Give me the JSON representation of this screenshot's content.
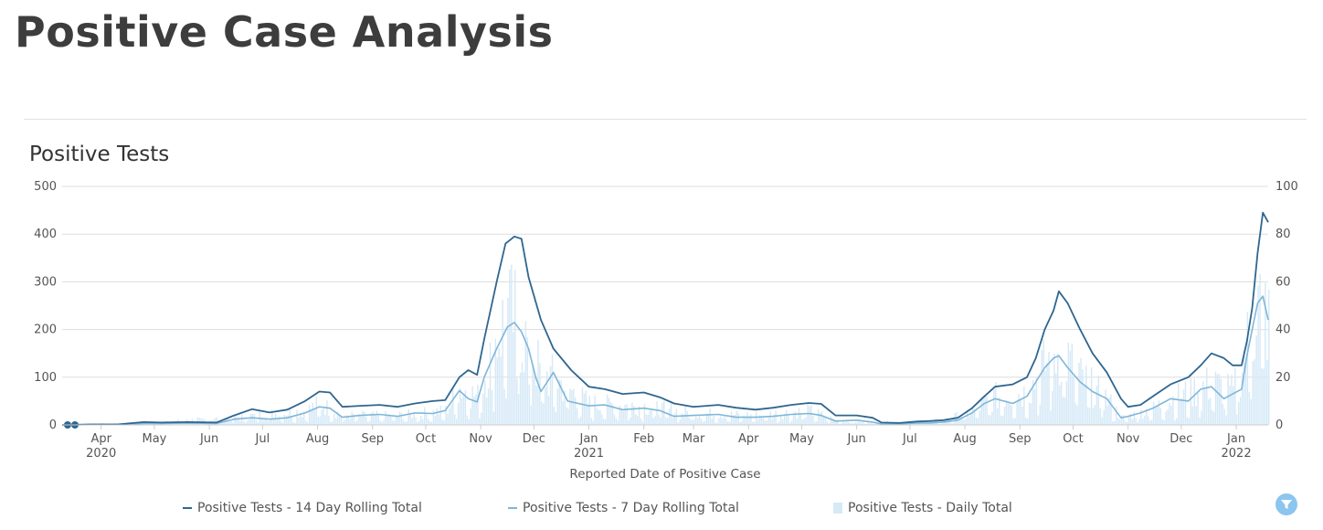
{
  "page": {
    "title": "Positive Case Analysis"
  },
  "chart_title": "Positive Tests",
  "colors": {
    "line14": "#2f6690",
    "line7": "#7fb6d8",
    "bars": "#d6e9f7",
    "grid": "#dddddd",
    "filter": "#8cc5ef"
  },
  "legend": {
    "items": [
      {
        "label": "Positive Tests - 14 Day Rolling Total",
        "color": "#2f6690",
        "shape": "line"
      },
      {
        "label": "Positive Tests - 7 Day Rolling Total",
        "color": "#7fb6d8",
        "shape": "line"
      },
      {
        "label": "Positive Tests - Daily Total",
        "color": "#d6e9f7",
        "shape": "box"
      }
    ]
  },
  "filter_icon": "filter-icon",
  "chart_data": {
    "type": "line",
    "title": "Positive Tests",
    "xlabel": "Reported Date of Positive Case",
    "ylabel_left": "",
    "ylabel_right": "",
    "ylim_left": [
      0,
      500
    ],
    "ylim_right": [
      0,
      100
    ],
    "yticks_left": [
      "0",
      "100",
      "200",
      "300",
      "400",
      "500"
    ],
    "yticks_right": [
      "0",
      "20",
      "40",
      "60",
      "80",
      "100"
    ],
    "grid": true,
    "legend_position": "bottom",
    "xlim": [
      "2020-03-10",
      "2022-01-19"
    ],
    "xticks": [
      {
        "date": "2020-04-01",
        "label": "Apr",
        "sub": "2020"
      },
      {
        "date": "2020-05-01",
        "label": "May",
        "sub": ""
      },
      {
        "date": "2020-06-01",
        "label": "Jun",
        "sub": ""
      },
      {
        "date": "2020-07-01",
        "label": "Jul",
        "sub": ""
      },
      {
        "date": "2020-08-01",
        "label": "Aug",
        "sub": ""
      },
      {
        "date": "2020-09-01",
        "label": "Sep",
        "sub": ""
      },
      {
        "date": "2020-10-01",
        "label": "Oct",
        "sub": ""
      },
      {
        "date": "2020-11-01",
        "label": "Nov",
        "sub": ""
      },
      {
        "date": "2020-12-01",
        "label": "Dec",
        "sub": ""
      },
      {
        "date": "2021-01-01",
        "label": "Jan",
        "sub": "2021"
      },
      {
        "date": "2021-02-01",
        "label": "Feb",
        "sub": ""
      },
      {
        "date": "2021-03-01",
        "label": "Mar",
        "sub": ""
      },
      {
        "date": "2021-04-01",
        "label": "Apr",
        "sub": ""
      },
      {
        "date": "2021-05-01",
        "label": "May",
        "sub": ""
      },
      {
        "date": "2021-06-01",
        "label": "Jun",
        "sub": ""
      },
      {
        "date": "2021-07-01",
        "label": "Jul",
        "sub": ""
      },
      {
        "date": "2021-08-01",
        "label": "Aug",
        "sub": ""
      },
      {
        "date": "2021-09-01",
        "label": "Sep",
        "sub": ""
      },
      {
        "date": "2021-10-01",
        "label": "Oct",
        "sub": ""
      },
      {
        "date": "2021-11-01",
        "label": "Nov",
        "sub": ""
      },
      {
        "date": "2021-12-01",
        "label": "Dec",
        "sub": ""
      },
      {
        "date": "2022-01-01",
        "label": "Jan",
        "sub": "2022"
      }
    ],
    "series": [
      {
        "name": "Positive Tests - 14 Day Rolling Total",
        "axis": "left",
        "points": [
          [
            "2020-03-10",
            0
          ],
          [
            "2020-03-12",
            0
          ],
          [
            "2020-03-26",
            1
          ],
          [
            "2020-04-10",
            1
          ],
          [
            "2020-04-25",
            6
          ],
          [
            "2020-05-05",
            5
          ],
          [
            "2020-05-20",
            6
          ],
          [
            "2020-06-05",
            5
          ],
          [
            "2020-06-15",
            20
          ],
          [
            "2020-06-25",
            33
          ],
          [
            "2020-07-05",
            26
          ],
          [
            "2020-07-15",
            32
          ],
          [
            "2020-07-25",
            50
          ],
          [
            "2020-08-02",
            70
          ],
          [
            "2020-08-08",
            68
          ],
          [
            "2020-08-15",
            38
          ],
          [
            "2020-08-25",
            40
          ],
          [
            "2020-09-05",
            42
          ],
          [
            "2020-09-15",
            38
          ],
          [
            "2020-09-25",
            45
          ],
          [
            "2020-10-05",
            50
          ],
          [
            "2020-10-12",
            52
          ],
          [
            "2020-10-20",
            100
          ],
          [
            "2020-10-25",
            115
          ],
          [
            "2020-10-30",
            105
          ],
          [
            "2020-11-03",
            180
          ],
          [
            "2020-11-10",
            300
          ],
          [
            "2020-11-15",
            380
          ],
          [
            "2020-11-20",
            395
          ],
          [
            "2020-11-24",
            390
          ],
          [
            "2020-11-28",
            310
          ],
          [
            "2020-12-05",
            220
          ],
          [
            "2020-12-12",
            160
          ],
          [
            "2020-12-22",
            115
          ],
          [
            "2021-01-01",
            80
          ],
          [
            "2021-01-10",
            75
          ],
          [
            "2021-01-20",
            65
          ],
          [
            "2021-02-01",
            68
          ],
          [
            "2021-02-10",
            58
          ],
          [
            "2021-02-18",
            45
          ],
          [
            "2021-03-01",
            38
          ],
          [
            "2021-03-15",
            42
          ],
          [
            "2021-03-25",
            36
          ],
          [
            "2021-04-05",
            32
          ],
          [
            "2021-04-15",
            36
          ],
          [
            "2021-04-25",
            42
          ],
          [
            "2021-05-05",
            46
          ],
          [
            "2021-05-12",
            44
          ],
          [
            "2021-05-20",
            20
          ],
          [
            "2021-06-01",
            20
          ],
          [
            "2021-06-10",
            15
          ],
          [
            "2021-06-15",
            5
          ],
          [
            "2021-06-25",
            4
          ],
          [
            "2021-07-05",
            7
          ],
          [
            "2021-07-12",
            8
          ],
          [
            "2021-07-20",
            10
          ],
          [
            "2021-07-28",
            15
          ],
          [
            "2021-08-05",
            35
          ],
          [
            "2021-08-12",
            60
          ],
          [
            "2021-08-18",
            80
          ],
          [
            "2021-08-28",
            85
          ],
          [
            "2021-09-05",
            100
          ],
          [
            "2021-09-10",
            140
          ],
          [
            "2021-09-15",
            200
          ],
          [
            "2021-09-20",
            240
          ],
          [
            "2021-09-23",
            280
          ],
          [
            "2021-09-28",
            255
          ],
          [
            "2021-10-05",
            200
          ],
          [
            "2021-10-12",
            150
          ],
          [
            "2021-10-20",
            110
          ],
          [
            "2021-10-28",
            55
          ],
          [
            "2021-11-01",
            38
          ],
          [
            "2021-11-08",
            42
          ],
          [
            "2021-11-15",
            60
          ],
          [
            "2021-11-25",
            85
          ],
          [
            "2021-12-05",
            100
          ],
          [
            "2021-12-12",
            125
          ],
          [
            "2021-12-18",
            150
          ],
          [
            "2021-12-25",
            140
          ],
          [
            "2021-12-30",
            125
          ],
          [
            "2022-01-04",
            125
          ],
          [
            "2022-01-07",
            175
          ],
          [
            "2022-01-10",
            245
          ],
          [
            "2022-01-13",
            360
          ],
          [
            "2022-01-16",
            445
          ],
          [
            "2022-01-19",
            425
          ]
        ]
      },
      {
        "name": "Positive Tests - 7 Day Rolling Total",
        "axis": "left",
        "points": [
          [
            "2020-03-10",
            0
          ],
          [
            "2020-03-26",
            1
          ],
          [
            "2020-04-10",
            1
          ],
          [
            "2020-04-25",
            3
          ],
          [
            "2020-05-05",
            3
          ],
          [
            "2020-05-20",
            4
          ],
          [
            "2020-06-05",
            3
          ],
          [
            "2020-06-15",
            12
          ],
          [
            "2020-06-25",
            15
          ],
          [
            "2020-07-05",
            12
          ],
          [
            "2020-07-15",
            15
          ],
          [
            "2020-07-25",
            25
          ],
          [
            "2020-08-02",
            38
          ],
          [
            "2020-08-08",
            35
          ],
          [
            "2020-08-15",
            16
          ],
          [
            "2020-08-25",
            20
          ],
          [
            "2020-09-05",
            22
          ],
          [
            "2020-09-15",
            18
          ],
          [
            "2020-09-25",
            25
          ],
          [
            "2020-10-05",
            24
          ],
          [
            "2020-10-12",
            30
          ],
          [
            "2020-10-20",
            72
          ],
          [
            "2020-10-25",
            55
          ],
          [
            "2020-10-30",
            48
          ],
          [
            "2020-11-03",
            100
          ],
          [
            "2020-11-10",
            160
          ],
          [
            "2020-11-16",
            205
          ],
          [
            "2020-11-20",
            215
          ],
          [
            "2020-11-24",
            195
          ],
          [
            "2020-11-28",
            160
          ],
          [
            "2020-12-02",
            100
          ],
          [
            "2020-12-05",
            70
          ],
          [
            "2020-12-12",
            110
          ],
          [
            "2020-12-20",
            50
          ],
          [
            "2021-01-01",
            40
          ],
          [
            "2021-01-10",
            42
          ],
          [
            "2021-01-20",
            32
          ],
          [
            "2021-02-01",
            35
          ],
          [
            "2021-02-10",
            30
          ],
          [
            "2021-02-18",
            18
          ],
          [
            "2021-03-01",
            20
          ],
          [
            "2021-03-15",
            22
          ],
          [
            "2021-03-25",
            16
          ],
          [
            "2021-04-05",
            16
          ],
          [
            "2021-04-15",
            18
          ],
          [
            "2021-04-25",
            22
          ],
          [
            "2021-05-05",
            24
          ],
          [
            "2021-05-12",
            20
          ],
          [
            "2021-05-20",
            8
          ],
          [
            "2021-06-01",
            10
          ],
          [
            "2021-06-10",
            6
          ],
          [
            "2021-06-15",
            2
          ],
          [
            "2021-06-25",
            2
          ],
          [
            "2021-07-05",
            4
          ],
          [
            "2021-07-12",
            4
          ],
          [
            "2021-07-20",
            6
          ],
          [
            "2021-07-28",
            10
          ],
          [
            "2021-08-05",
            25
          ],
          [
            "2021-08-12",
            45
          ],
          [
            "2021-08-18",
            55
          ],
          [
            "2021-08-28",
            45
          ],
          [
            "2021-09-05",
            60
          ],
          [
            "2021-09-10",
            90
          ],
          [
            "2021-09-15",
            120
          ],
          [
            "2021-09-20",
            140
          ],
          [
            "2021-09-23",
            145
          ],
          [
            "2021-09-28",
            120
          ],
          [
            "2021-10-05",
            90
          ],
          [
            "2021-10-12",
            70
          ],
          [
            "2021-10-20",
            55
          ],
          [
            "2021-10-28",
            15
          ],
          [
            "2021-11-01",
            18
          ],
          [
            "2021-11-08",
            25
          ],
          [
            "2021-11-15",
            35
          ],
          [
            "2021-11-25",
            55
          ],
          [
            "2021-12-05",
            50
          ],
          [
            "2021-12-12",
            75
          ],
          [
            "2021-12-18",
            80
          ],
          [
            "2021-12-25",
            55
          ],
          [
            "2021-12-30",
            65
          ],
          [
            "2022-01-04",
            75
          ],
          [
            "2022-01-07",
            145
          ],
          [
            "2022-01-10",
            200
          ],
          [
            "2022-01-13",
            255
          ],
          [
            "2022-01-16",
            270
          ],
          [
            "2022-01-19",
            220
          ]
        ]
      },
      {
        "name": "Positive Tests - Daily Total",
        "axis": "right",
        "type": "bar",
        "envelope": [
          [
            "2020-03-10",
            0
          ],
          [
            "2020-04-25",
            1
          ],
          [
            "2020-06-15",
            3
          ],
          [
            "2020-06-25",
            4
          ],
          [
            "2020-07-25",
            6
          ],
          [
            "2020-08-02",
            9
          ],
          [
            "2020-08-15",
            4
          ],
          [
            "2020-09-15",
            4
          ],
          [
            "2020-10-12",
            6
          ],
          [
            "2020-10-20",
            16
          ],
          [
            "2020-10-30",
            12
          ],
          [
            "2020-11-10",
            38
          ],
          [
            "2020-11-16",
            48
          ],
          [
            "2020-11-20",
            45
          ],
          [
            "2020-11-28",
            33
          ],
          [
            "2020-12-05",
            22
          ],
          [
            "2020-12-12",
            20
          ],
          [
            "2021-01-01",
            9
          ],
          [
            "2021-02-01",
            8
          ],
          [
            "2021-03-01",
            5
          ],
          [
            "2021-04-05",
            4
          ],
          [
            "2021-05-05",
            6
          ],
          [
            "2021-05-20",
            2
          ],
          [
            "2021-06-15",
            1
          ],
          [
            "2021-07-20",
            2
          ],
          [
            "2021-08-05",
            6
          ],
          [
            "2021-08-18",
            12
          ],
          [
            "2021-09-05",
            14
          ],
          [
            "2021-09-15",
            26
          ],
          [
            "2021-09-23",
            32
          ],
          [
            "2021-10-05",
            20
          ],
          [
            "2021-10-20",
            11
          ],
          [
            "2021-10-28",
            3
          ],
          [
            "2021-11-15",
            7
          ],
          [
            "2021-11-25",
            11
          ],
          [
            "2021-12-12",
            16
          ],
          [
            "2021-12-18",
            18
          ],
          [
            "2021-12-30",
            14
          ],
          [
            "2022-01-07",
            35
          ],
          [
            "2022-01-13",
            52
          ],
          [
            "2022-01-16",
            55
          ],
          [
            "2022-01-19",
            42
          ]
        ]
      }
    ]
  }
}
